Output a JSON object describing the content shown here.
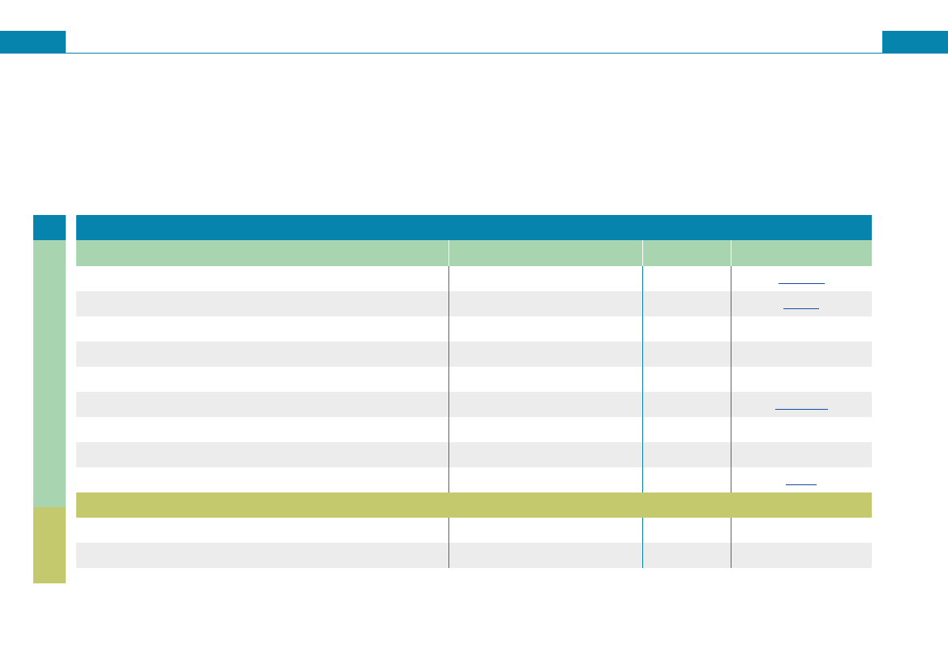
{
  "colors": {
    "accent": "#0784ae",
    "section_green": "#a9d4b0",
    "section_olive": "#c5c96d",
    "row_stripe": "#ececec"
  },
  "table": {
    "header": [
      "",
      "",
      "",
      ""
    ],
    "sections": [
      {
        "name": "section-1",
        "color": "green",
        "title": "",
        "rows": 9
      },
      {
        "name": "section-2",
        "color": "olive",
        "title": "",
        "rows": 2
      }
    ]
  }
}
